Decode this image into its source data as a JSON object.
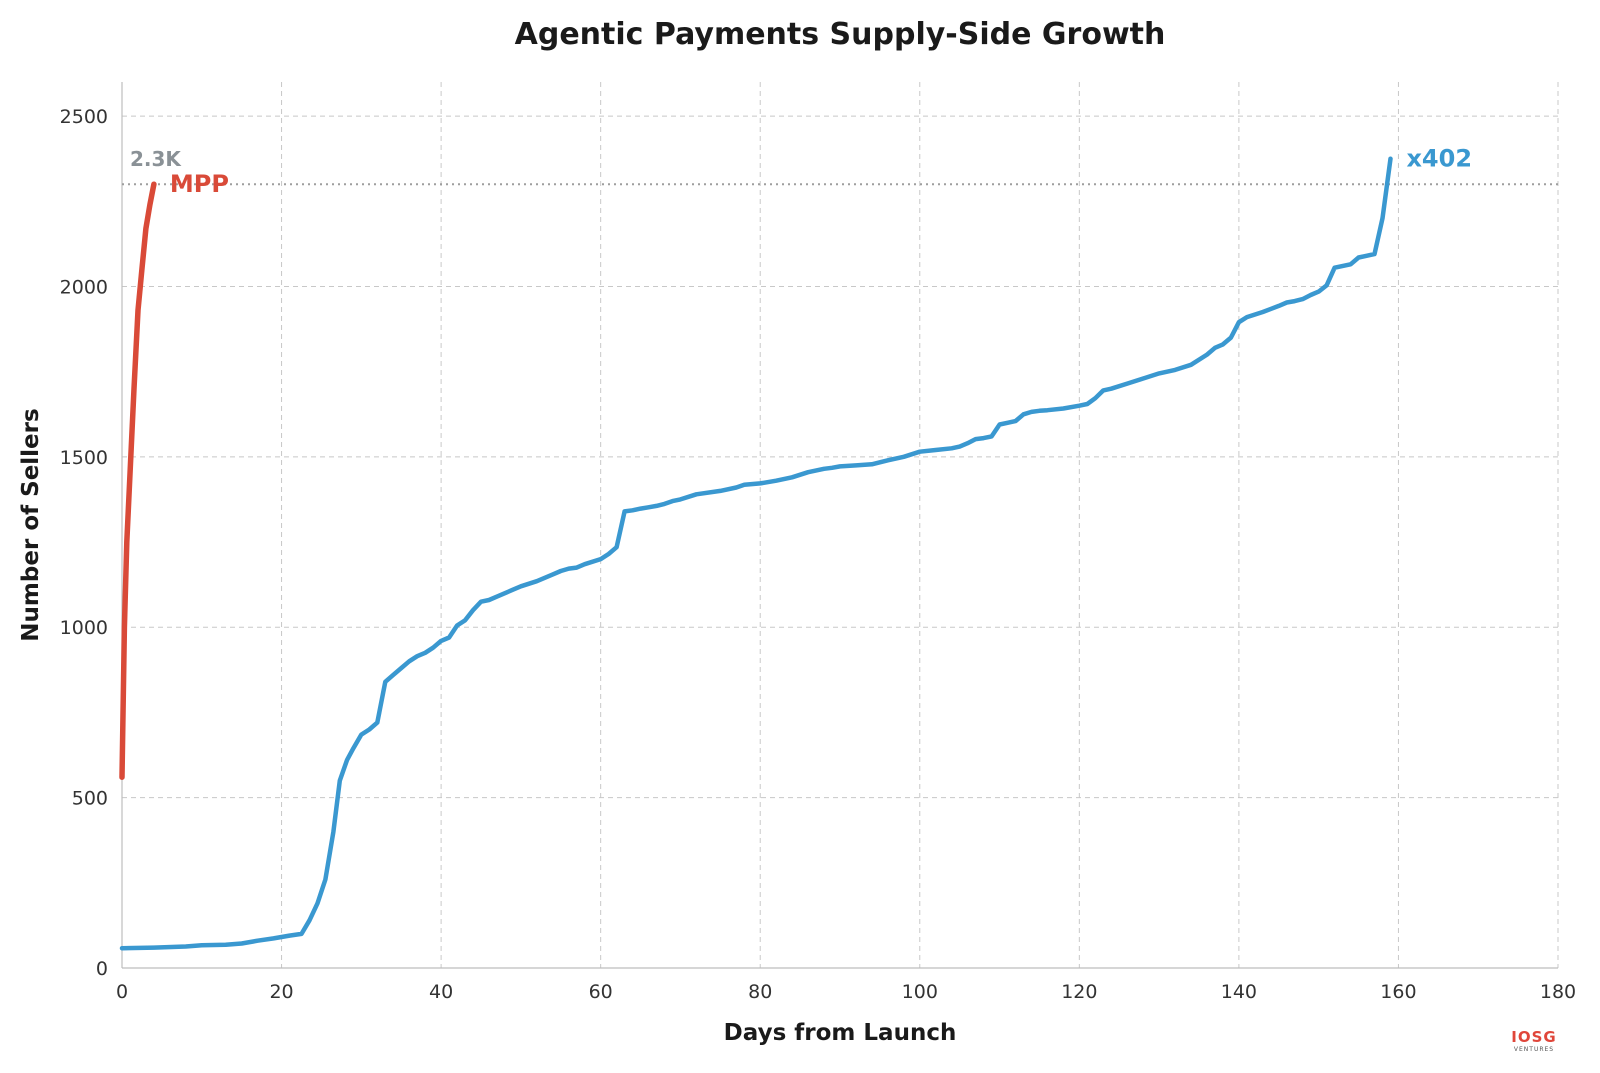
{
  "colors": {
    "mpp": "#d94a38",
    "x402": "#3a98d0",
    "reference": "#8a9196",
    "logo": "#e0463a"
  },
  "logo": {
    "text": "IOSG",
    "subtext": "VENTURES"
  },
  "chart_data": {
    "type": "line",
    "title": "Agentic Payments Supply-Side Growth",
    "xlabel": "Days from Launch",
    "ylabel": "Number of Sellers",
    "xlim": [
      0,
      180
    ],
    "ylim": [
      0,
      2600
    ],
    "xticks": [
      0,
      20,
      40,
      60,
      80,
      100,
      120,
      140,
      160,
      180
    ],
    "yticks": [
      0,
      500,
      1000,
      1500,
      2000,
      2500
    ],
    "grid": true,
    "reference_line": {
      "y": 2300,
      "label": "2.3K"
    },
    "series": [
      {
        "name": "MPP",
        "color": "#d94a38",
        "x": [
          0,
          0.3,
          0.6,
          1.0,
          1.5,
          2.0,
          2.5,
          3.0,
          3.5,
          4.0
        ],
        "y": [
          560,
          1000,
          1250,
          1450,
          1700,
          1930,
          2050,
          2170,
          2240,
          2300
        ]
      },
      {
        "name": "x402",
        "color": "#3a98d0",
        "x": [
          0,
          4,
          8,
          10,
          13,
          15,
          17,
          19,
          21,
          22.5,
          23.5,
          24.5,
          25.5,
          26.5,
          27.3,
          28.2,
          29,
          30,
          31,
          32,
          33,
          34,
          35,
          36,
          37,
          38,
          39,
          40,
          41,
          42,
          43,
          44,
          45,
          46,
          47,
          48,
          49,
          50,
          52,
          54,
          55,
          56,
          57,
          58,
          60,
          61,
          62,
          63,
          64,
          65,
          66,
          67,
          68,
          69,
          70,
          72,
          75,
          77,
          78,
          80,
          82,
          84,
          86,
          88,
          89,
          90,
          92,
          94,
          96,
          98,
          100,
          102,
          104,
          105,
          106,
          107,
          108,
          109,
          110,
          111,
          112,
          113,
          114,
          115,
          116,
          118,
          120,
          121,
          122,
          123,
          124,
          126,
          128,
          130,
          132,
          134,
          136,
          137,
          138,
          139,
          140,
          141,
          143,
          145,
          146,
          147,
          148,
          149,
          150,
          151,
          152,
          154,
          155,
          156,
          157,
          158,
          159
        ],
        "y": [
          58,
          60,
          63,
          67,
          68,
          72,
          80,
          87,
          95,
          100,
          140,
          190,
          260,
          400,
          550,
          610,
          645,
          685,
          700,
          720,
          840,
          860,
          880,
          900,
          915,
          925,
          940,
          960,
          970,
          1005,
          1020,
          1050,
          1075,
          1080,
          1090,
          1100,
          1110,
          1120,
          1135,
          1155,
          1165,
          1172,
          1175,
          1185,
          1200,
          1215,
          1235,
          1340,
          1343,
          1348,
          1352,
          1356,
          1362,
          1370,
          1375,
          1390,
          1400,
          1410,
          1418,
          1422,
          1430,
          1440,
          1455,
          1465,
          1468,
          1472,
          1475,
          1478,
          1490,
          1500,
          1515,
          1520,
          1525,
          1530,
          1540,
          1552,
          1555,
          1560,
          1595,
          1600,
          1605,
          1625,
          1632,
          1635,
          1637,
          1642,
          1650,
          1655,
          1672,
          1695,
          1700,
          1715,
          1730,
          1745,
          1755,
          1770,
          1800,
          1820,
          1830,
          1850,
          1895,
          1910,
          1925,
          1943,
          1953,
          1957,
          1963,
          1975,
          1985,
          2003,
          2055,
          2065,
          2085,
          2090,
          2095,
          2200,
          2375
        ]
      }
    ]
  }
}
